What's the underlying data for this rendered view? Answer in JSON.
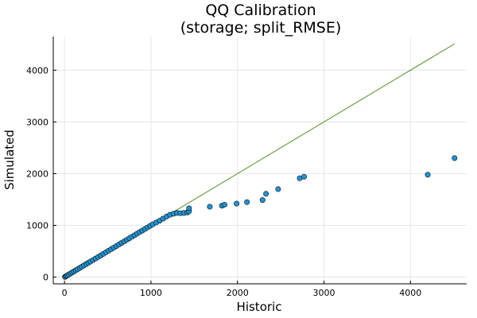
{
  "chart_data": {
    "type": "scatter",
    "title_lines": [
      "QQ Calibration",
      "(storage; split_RMSE)"
    ],
    "xlabel": "Historic",
    "ylabel": "Simulated",
    "xlim": [
      -130,
      4650
    ],
    "ylim": [
      -130,
      4650
    ],
    "xticks": [
      0,
      1000,
      2000,
      3000,
      4000
    ],
    "yticks": [
      0,
      1000,
      2000,
      3000,
      4000
    ],
    "grid": true,
    "legend": "none",
    "colors": {
      "points": "#1f93d4",
      "point_edge": "#111111",
      "reference_line": "#6fa048"
    },
    "reference_line": {
      "x": [
        0,
        4510
      ],
      "y": [
        0,
        4510
      ]
    },
    "series": [
      {
        "x": [
          5,
          15,
          25,
          35,
          50,
          70,
          90,
          110,
          130,
          150,
          175,
          200,
          225,
          250,
          275,
          300,
          330,
          360,
          390,
          420,
          450,
          480,
          510,
          540,
          570,
          600,
          630,
          660,
          690,
          720,
          750,
          780,
          810,
          840,
          870,
          900,
          930,
          960,
          990,
          1020,
          1060,
          1100,
          1140,
          1180,
          1220,
          1260,
          1300,
          1340,
          1380,
          1420,
          1440,
          1440,
          1680,
          1820,
          1850,
          1990,
          2110,
          2290,
          2330,
          2470,
          2720,
          2770,
          4200,
          4510
        ],
        "y": [
          5,
          15,
          25,
          35,
          50,
          70,
          90,
          110,
          130,
          150,
          175,
          200,
          225,
          250,
          275,
          300,
          330,
          360,
          390,
          420,
          450,
          480,
          510,
          540,
          570,
          600,
          630,
          660,
          690,
          720,
          750,
          780,
          810,
          840,
          870,
          900,
          930,
          960,
          990,
          1020,
          1055,
          1090,
          1130,
          1170,
          1205,
          1225,
          1240,
          1235,
          1240,
          1250,
          1270,
          1330,
          1360,
          1380,
          1400,
          1420,
          1450,
          1490,
          1610,
          1700,
          1910,
          1940,
          1980,
          2300
        ]
      }
    ]
  }
}
